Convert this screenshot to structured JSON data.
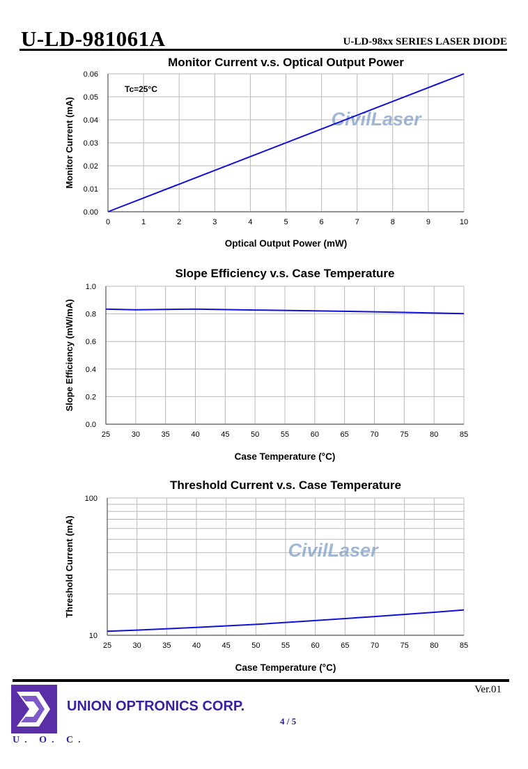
{
  "header": {
    "part_number": "U-LD-981061A",
    "series": "U-LD-98xx SERIES LASER DIODE"
  },
  "watermark": "CivilLaser",
  "charts": [
    {
      "id": "monitor",
      "title": "Monitor Current v.s. Optical Output Power",
      "xlabel": "Optical Output Power (mW)",
      "ylabel": "Monitor Current (mA)",
      "annotation": "Tc=25°C",
      "x_ticks": [
        "0",
        "1",
        "2",
        "3",
        "4",
        "5",
        "6",
        "7",
        "8",
        "9",
        "10"
      ],
      "y_ticks": [
        "0.00",
        "0.01",
        "0.02",
        "0.03",
        "0.04",
        "0.05",
        "0.06"
      ]
    },
    {
      "id": "slope",
      "title": "Slope Efficiency v.s. Case Temperature",
      "xlabel": "Case Temperature (°C)",
      "ylabel": "Slope Efficiency (mW/mA)",
      "x_ticks": [
        "25",
        "30",
        "35",
        "40",
        "45",
        "50",
        "55",
        "60",
        "65",
        "70",
        "75",
        "80",
        "85"
      ],
      "y_ticks": [
        "0.0",
        "0.2",
        "0.4",
        "0.6",
        "0.8",
        "1.0"
      ]
    },
    {
      "id": "threshold",
      "title": "Threshold Current v.s. Case Temperature",
      "xlabel": "Case Temperature (°C)",
      "ylabel": "Threshold Current (mA)",
      "x_ticks": [
        "25",
        "30",
        "35",
        "40",
        "45",
        "50",
        "55",
        "60",
        "65",
        "70",
        "75",
        "80",
        "85"
      ],
      "y_ticks": [
        "10",
        "100"
      ]
    }
  ],
  "chart_data": [
    {
      "type": "line",
      "title": "Monitor Current v.s. Optical Output Power",
      "xlabel": "Optical Output Power (mW)",
      "ylabel": "Monitor Current (mA)",
      "xlim": [
        0,
        10
      ],
      "ylim": [
        0,
        0.06
      ],
      "grid": true,
      "series": [
        {
          "x": [
            0,
            10
          ],
          "y": [
            0.0,
            0.06
          ]
        }
      ]
    },
    {
      "type": "line",
      "title": "Slope Efficiency v.s. Case Temperature",
      "xlabel": "Case Temperature (°C)",
      "ylabel": "Slope Efficiency (mW/mA)",
      "xlim": [
        25,
        85
      ],
      "ylim": [
        0,
        1.0
      ],
      "grid": true,
      "series": [
        {
          "x": [
            25,
            30,
            40,
            50,
            60,
            70,
            85
          ],
          "y": [
            0.835,
            0.83,
            0.835,
            0.828,
            0.822,
            0.815,
            0.802
          ]
        }
      ]
    },
    {
      "type": "line",
      "title": "Threshold Current v.s. Case Temperature",
      "xlabel": "Case Temperature (°C)",
      "ylabel": "Threshold Current (mA)",
      "xlim": [
        25,
        85
      ],
      "ylim": [
        10,
        100
      ],
      "yscale": "log",
      "grid": true,
      "series": [
        {
          "x": [
            25,
            30,
            40,
            50,
            60,
            70,
            80,
            85
          ],
          "y": [
            10.7,
            10.9,
            11.4,
            12.0,
            12.8,
            13.7,
            14.7,
            15.3
          ]
        }
      ]
    }
  ],
  "footer": {
    "version": "Ver.01",
    "company": "UNION OPTRONICS CORP.",
    "page": "4 / 5",
    "logo_text": "U. O. C.",
    "logo_colors": {
      "primary": "#5a2ea6",
      "accent": "#8a6ad0"
    }
  },
  "colors": {
    "line": "#1010d8",
    "grid": "#b8b8b8"
  }
}
